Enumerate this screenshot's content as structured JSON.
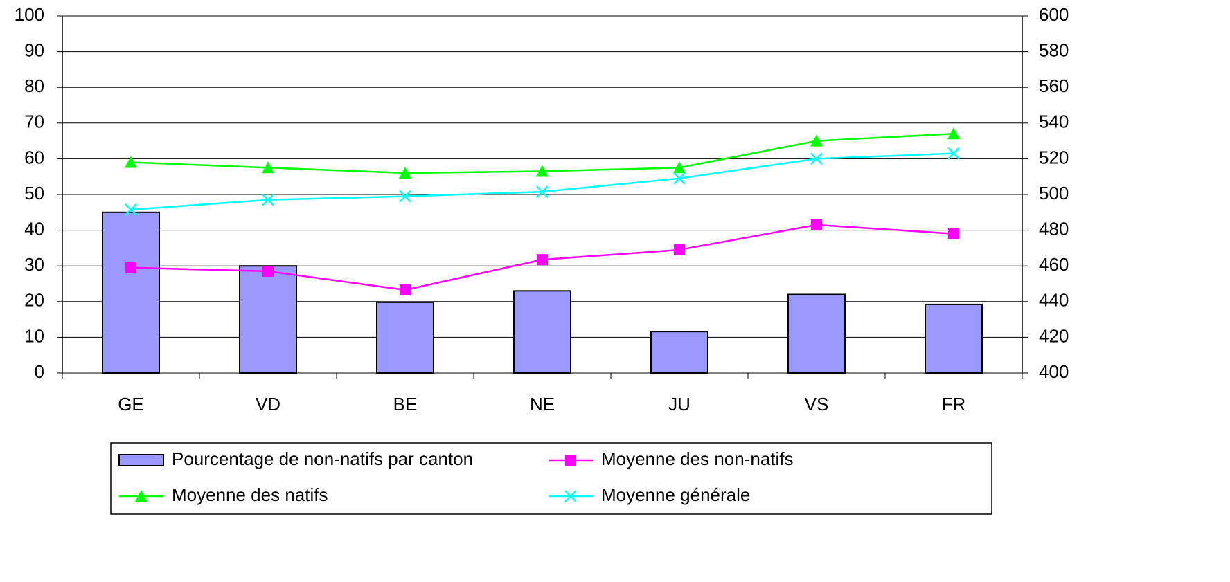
{
  "chart_data": {
    "type": "bar_line",
    "categories": [
      "GE",
      "VD",
      "BE",
      "NE",
      "JU",
      "VS",
      "FR"
    ],
    "series": [
      {
        "name": "Pourcentage de non-natifs par canton",
        "type": "bar",
        "color": "#9999ff",
        "axis": "y",
        "values": [
          45,
          30,
          19.8,
          23,
          11.6,
          22,
          19.2
        ]
      },
      {
        "name": "Moyenne des non-natifs",
        "type": "line",
        "marker": "square",
        "color": "#ff00ff",
        "axis": "y2",
        "values": [
          459,
          457,
          446.5,
          463.5,
          469,
          483,
          478
        ]
      },
      {
        "name": "Moyenne des natifs",
        "type": "line",
        "marker": "triangle",
        "color": "#00ff00",
        "axis": "y2",
        "values": [
          518,
          515,
          512,
          513,
          515,
          530,
          534
        ]
      },
      {
        "name": "Moyenne générale",
        "type": "line",
        "marker": "x",
        "color": "#00ffff",
        "axis": "y2",
        "values": [
          491.5,
          497,
          499,
          501.5,
          509,
          520,
          523
        ]
      }
    ],
    "ylim": [
      0,
      100
    ],
    "yticks": [
      0,
      10,
      20,
      30,
      40,
      50,
      60,
      70,
      80,
      90,
      100
    ],
    "y2lim": [
      400,
      600
    ],
    "y2ticks": [
      400,
      420,
      440,
      460,
      480,
      500,
      520,
      540,
      560,
      580,
      600
    ],
    "grid": true,
    "legend": "bottom"
  }
}
